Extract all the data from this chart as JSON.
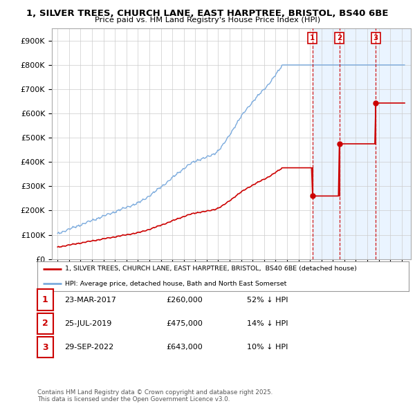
{
  "title_line1": "1, SILVER TREES, CHURCH LANE, EAST HARPTREE, BRISTOL, BS40 6BE",
  "title_line2": "Price paid vs. HM Land Registry's House Price Index (HPI)",
  "hpi_color": "#7aaadd",
  "price_color": "#cc0000",
  "shade_color": "#ddeeff",
  "legend_label_price": "1, SILVER TREES, CHURCH LANE, EAST HARPTREE, BRISTOL,  BS40 6BE (detached house)",
  "legend_label_hpi": "HPI: Average price, detached house, Bath and North East Somerset",
  "transactions": [
    {
      "num": 1,
      "date": "23-MAR-2017",
      "price": 260000,
      "pct": "52%",
      "dir": "↓",
      "x_year": 2017.22
    },
    {
      "num": 2,
      "date": "25-JUL-2019",
      "price": 475000,
      "pct": "14%",
      "dir": "↓",
      "x_year": 2019.57
    },
    {
      "num": 3,
      "date": "29-SEP-2022",
      "price": 643000,
      "pct": "10%",
      "dir": "↓",
      "x_year": 2022.75
    }
  ],
  "footer": "Contains HM Land Registry data © Crown copyright and database right 2025.\nThis data is licensed under the Open Government Licence v3.0.",
  "background_color": "#ffffff",
  "grid_color": "#cccccc",
  "xlim_start": 1994.5,
  "xlim_end": 2025.8,
  "ylim": [
    0,
    950000
  ],
  "yticks": [
    0,
    100000,
    200000,
    300000,
    400000,
    500000,
    600000,
    700000,
    800000,
    900000
  ],
  "ytick_labels": [
    "£0",
    "£100K",
    "£200K",
    "£300K",
    "£400K",
    "£500K",
    "£600K",
    "£700K",
    "£800K",
    "£900K"
  ]
}
